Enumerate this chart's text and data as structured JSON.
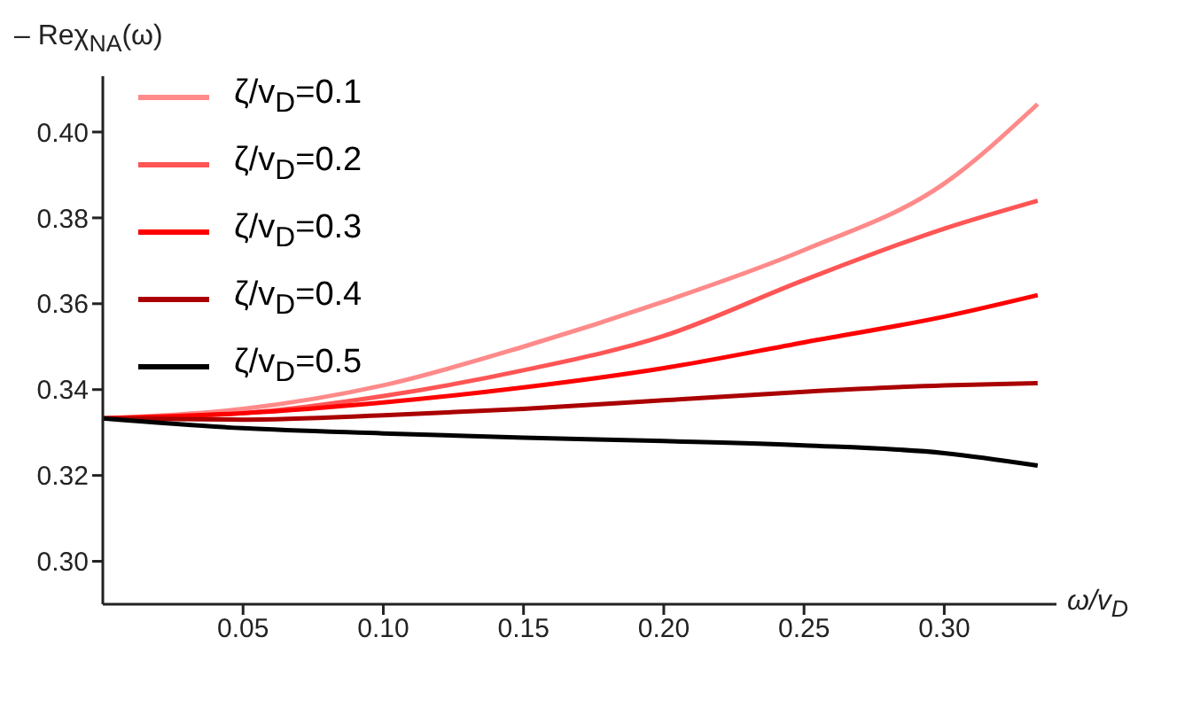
{
  "chart_data": {
    "type": "line",
    "xlabel": "ω/v$_{D}$",
    "ylabel": "– Reχ$_{NA}$(ω)",
    "x": [
      0,
      0.05,
      0.1,
      0.15,
      0.2,
      0.25,
      0.3,
      0.3333
    ],
    "series": [
      {
        "name": "ζ/v$_{D}$=0.1",
        "color": "#ff8a8a",
        "values": [
          0.3333,
          0.3355,
          0.341,
          0.35,
          0.3605,
          0.3725,
          0.388,
          0.4065
        ]
      },
      {
        "name": "ζ/v$_{D}$=0.2",
        "color": "#ff5555",
        "values": [
          0.3333,
          0.3345,
          0.3385,
          0.3445,
          0.3525,
          0.3655,
          0.3775,
          0.384
        ]
      },
      {
        "name": "ζ/v$_{D}$=0.3",
        "color": "#ff0000",
        "values": [
          0.3333,
          0.3345,
          0.337,
          0.3405,
          0.345,
          0.351,
          0.357,
          0.362
        ]
      },
      {
        "name": "ζ/v$_{D}$=0.4",
        "color": "#aa0000",
        "values": [
          0.3333,
          0.333,
          0.334,
          0.3355,
          0.3375,
          0.3395,
          0.341,
          0.3415
        ]
      },
      {
        "name": "ζ/v$_{D}$=0.5",
        "color": "#000000",
        "values": [
          0.3333,
          0.331,
          0.3298,
          0.3288,
          0.328,
          0.327,
          0.3252,
          0.3223
        ]
      }
    ],
    "xlim": [
      0,
      0.34
    ],
    "ylim": [
      0.29,
      0.413
    ],
    "xticks": [
      0.05,
      {
        "value": 0.1,
        "label": "0.10"
      },
      0.15,
      {
        "value": 0.2,
        "label": "0.20"
      },
      0.25,
      {
        "value": 0.3,
        "label": "0.30"
      }
    ],
    "yticks": [
      {
        "value": 0.3,
        "label": "0.30"
      },
      0.32,
      0.34,
      0.36,
      0.38,
      {
        "value": 0.4,
        "label": "0.40"
      }
    ],
    "grid": false,
    "legend": "top left",
    "marker": "none",
    "line_style": "solid"
  }
}
